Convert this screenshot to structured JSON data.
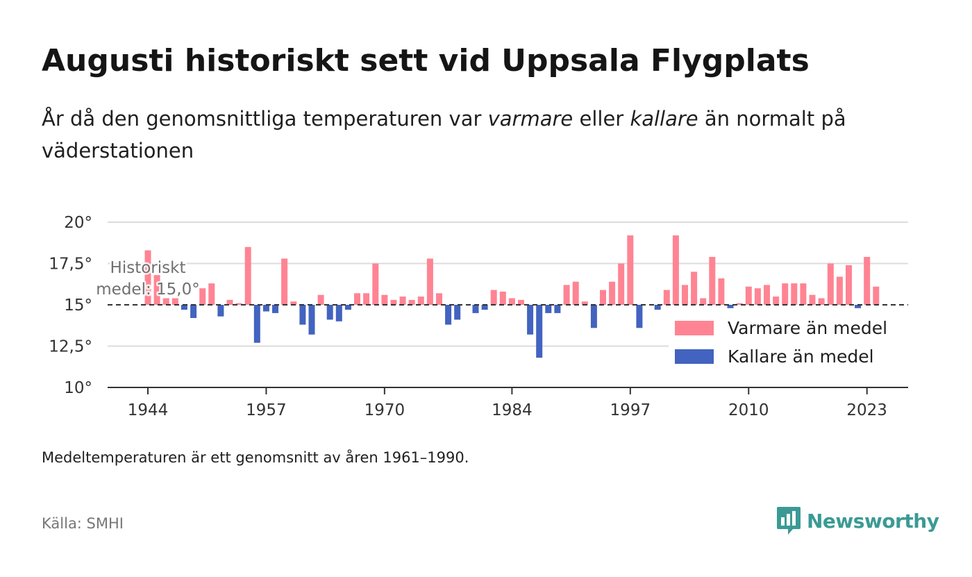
{
  "header": {
    "title": "Augusti historiskt sett vid Uppsala Flygplats",
    "subtitle_part1": "År då den genomsnittliga temperaturen var ",
    "subtitle_em1": "varmare",
    "subtitle_part2": " eller ",
    "subtitle_em2": "kallare",
    "subtitle_part3": " än normalt på väderstationen"
  },
  "footer": {
    "note": "Medeltemperaturen är ett genomsnitt av åren 1961–1990.",
    "source": "Källa: SMHI",
    "brand": "Newsworthy"
  },
  "colors": {
    "warm": "#ff8493",
    "cold": "#4263bf",
    "brand": "#3b9a94"
  },
  "chart_data": {
    "type": "bar",
    "baseline": 15.0,
    "baseline_label_line1": "Historiskt",
    "baseline_label_line2": "medel: 15,0°",
    "ylim": [
      10,
      20
    ],
    "y_ticks": [
      10,
      12.5,
      15,
      17.5,
      20
    ],
    "y_tick_labels": [
      "10°",
      "12,5°",
      "15°",
      "17,5°",
      "20°"
    ],
    "x_ticks": [
      1944,
      1957,
      1970,
      1984,
      1997,
      2010,
      2023
    ],
    "x_tick_labels": [
      "1944",
      "1957",
      "1970",
      "1984",
      "1997",
      "2010",
      "2023"
    ],
    "legend_position": "right",
    "series": [
      {
        "name": "Varmare än medel",
        "color_key": "warm"
      },
      {
        "name": "Kallare än medel",
        "color_key": "cold"
      }
    ],
    "years": [
      1944,
      1945,
      1946,
      1947,
      1948,
      1949,
      1950,
      1951,
      1952,
      1953,
      1954,
      1955,
      1956,
      1957,
      1958,
      1959,
      1960,
      1961,
      1962,
      1963,
      1964,
      1965,
      1966,
      1967,
      1968,
      1969,
      1970,
      1971,
      1972,
      1973,
      1974,
      1975,
      1976,
      1977,
      1978,
      1979,
      1980,
      1981,
      1982,
      1983,
      1984,
      1985,
      1986,
      1987,
      1988,
      1989,
      1990,
      1991,
      1992,
      1993,
      1994,
      1995,
      1996,
      1997,
      1998,
      1999,
      2000,
      2001,
      2002,
      2003,
      2004,
      2005,
      2006,
      2007,
      2008,
      2009,
      2010,
      2011,
      2012,
      2013,
      2014,
      2015,
      2016,
      2017,
      2018,
      2019,
      2020,
      2021,
      2022,
      2023,
      2024
    ],
    "values": [
      18.3,
      16.8,
      15.4,
      15.4,
      14.7,
      14.2,
      16.0,
      16.3,
      14.3,
      15.3,
      15.1,
      18.5,
      12.7,
      14.6,
      14.5,
      17.8,
      15.2,
      13.8,
      13.2,
      15.6,
      14.1,
      14.0,
      14.7,
      15.7,
      15.7,
      17.5,
      15.6,
      15.3,
      15.5,
      15.3,
      15.5,
      17.8,
      15.7,
      13.8,
      14.1,
      15.0,
      14.5,
      14.7,
      15.9,
      15.8,
      15.4,
      15.3,
      13.2,
      11.8,
      14.5,
      14.5,
      16.2,
      16.4,
      15.2,
      13.6,
      15.9,
      16.4,
      17.5,
      19.2,
      13.6,
      15.0,
      14.7,
      15.9,
      19.2,
      16.2,
      17.0,
      15.4,
      17.9,
      16.6,
      14.8,
      15.1,
      16.1,
      16.0,
      16.2,
      15.5,
      16.3,
      16.3,
      16.3,
      15.6,
      15.4,
      17.5,
      16.7,
      17.4,
      14.8,
      17.9,
      16.1
    ]
  }
}
